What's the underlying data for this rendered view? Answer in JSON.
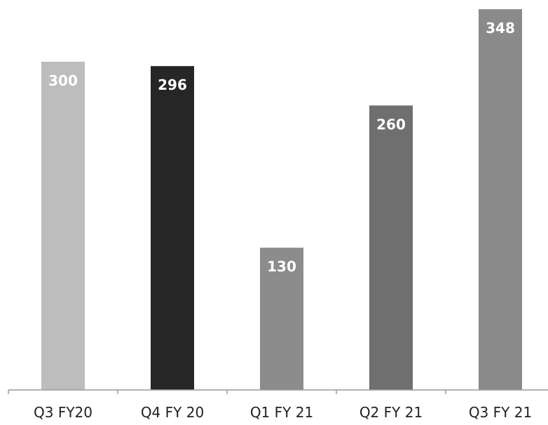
{
  "chart_data": {
    "type": "bar",
    "categories": [
      "Q3 FY20",
      "Q4 FY 20",
      "Q1 FY 21",
      "Q2 FY 21",
      "Q3 FY 21"
    ],
    "values": [
      300,
      296,
      130,
      260,
      348
    ],
    "data_labels": [
      "300",
      "296",
      "130",
      "260",
      "348"
    ],
    "bar_colors": [
      "#bdbdbd",
      "#262626",
      "#8c8c8c",
      "#6f6f6f",
      "#8a8a8a"
    ],
    "title": "",
    "xlabel": "",
    "ylabel": "",
    "ylim": [
      0,
      350
    ],
    "grid": false,
    "legend": "none"
  }
}
